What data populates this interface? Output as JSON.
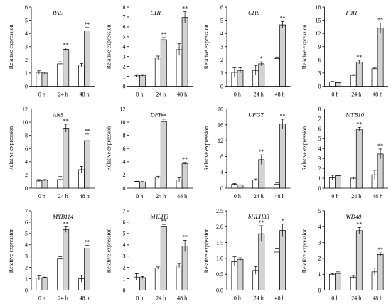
{
  "chart_data": [
    {
      "type": "bar",
      "title": "PAL",
      "ylabel": "Relative expression",
      "categories": [
        "0 h",
        "24 h",
        "48 h"
      ],
      "ylim": [
        0,
        6
      ],
      "yticks": [
        0,
        1,
        2,
        3,
        4,
        5,
        6
      ],
      "series": [
        {
          "color": "#ffffff",
          "values": [
            1.05,
            1.7,
            1.6
          ],
          "errors": [
            0.12,
            0.15,
            0.12
          ]
        },
        {
          "color": "#d3d3d3",
          "values": [
            1.0,
            2.8,
            4.2
          ],
          "errors": [
            0.07,
            0.1,
            0.25
          ]
        }
      ],
      "sig": [
        [
          "",
          "",
          ""
        ],
        [
          "",
          "**",
          "**"
        ]
      ]
    },
    {
      "type": "bar",
      "title": "CHI",
      "ylabel": "Relative expression",
      "categories": [
        "0 h",
        "24 h",
        "48 h"
      ],
      "ylim": [
        0,
        8
      ],
      "yticks": [
        0,
        1,
        2,
        3,
        4,
        5,
        6,
        7,
        8
      ],
      "series": [
        {
          "color": "#ffffff",
          "values": [
            1.05,
            2.85,
            3.7
          ],
          "errors": [
            0.12,
            0.2,
            0.6
          ]
        },
        {
          "color": "#d3d3d3",
          "values": [
            1.1,
            4.7,
            6.95
          ],
          "errors": [
            0.08,
            0.22,
            0.6
          ]
        }
      ],
      "sig": [
        [
          "",
          "",
          ""
        ],
        [
          "",
          "**",
          "**"
        ]
      ]
    },
    {
      "type": "bar",
      "title": "CHS",
      "ylabel": "Relative expression",
      "categories": [
        "0 h",
        "24 h",
        "48 h"
      ],
      "ylim": [
        0,
        6
      ],
      "yticks": [
        0,
        1,
        2,
        3,
        4,
        5,
        6
      ],
      "series": [
        {
          "color": "#ffffff",
          "values": [
            1.05,
            1.2,
            2.1
          ],
          "errors": [
            0.35,
            0.35,
            0.12
          ]
        },
        {
          "color": "#d3d3d3",
          "values": [
            1.2,
            1.7,
            4.65
          ],
          "errors": [
            0.2,
            0.15,
            0.25
          ]
        }
      ],
      "sig": [
        [
          "",
          "",
          ""
        ],
        [
          "",
          "*",
          "**"
        ]
      ]
    },
    {
      "type": "bar",
      "title": "F3H",
      "ylabel": "Relative expression",
      "categories": [
        "0 h",
        "24 h",
        "48 h"
      ],
      "ylim": [
        0,
        18
      ],
      "yticks": [
        0,
        3,
        6,
        9,
        12,
        15,
        18
      ],
      "series": [
        {
          "color": "#ffffff",
          "values": [
            1.0,
            2.5,
            4.0
          ],
          "errors": [
            0.1,
            0.15,
            0.25
          ]
        },
        {
          "color": "#d3d3d3",
          "values": [
            0.8,
            5.5,
            13.2
          ],
          "errors": [
            0.1,
            0.4,
            1.2
          ]
        }
      ],
      "sig": [
        [
          "",
          "",
          ""
        ],
        [
          "",
          "**",
          "**"
        ]
      ]
    },
    {
      "type": "bar",
      "title": "ANS",
      "ylabel": "Relative expression",
      "categories": [
        "0 h",
        "24 h",
        "48 h"
      ],
      "ylim": [
        0,
        12
      ],
      "yticks": [
        0,
        2,
        4,
        6,
        8,
        10,
        12
      ],
      "series": [
        {
          "color": "#ffffff",
          "values": [
            1.1,
            1.3,
            2.8
          ],
          "errors": [
            0.2,
            0.45,
            0.5
          ]
        },
        {
          "color": "#d3d3d3",
          "values": [
            1.2,
            9.1,
            7.2
          ],
          "errors": [
            0.1,
            0.6,
            1.0
          ]
        }
      ],
      "sig": [
        [
          "",
          "",
          ""
        ],
        [
          "",
          "**",
          "**"
        ]
      ]
    },
    {
      "type": "bar",
      "title": "DFR",
      "ylabel": "Relative expression",
      "categories": [
        "0 h",
        "24 h",
        "48 h"
      ],
      "ylim": [
        0,
        12
      ],
      "yticks": [
        0,
        2,
        4,
        6,
        8,
        10,
        12
      ],
      "series": [
        {
          "color": "#ffffff",
          "values": [
            1.0,
            1.65,
            1.25
          ],
          "errors": [
            0.05,
            0.15,
            0.3
          ]
        },
        {
          "color": "#d3d3d3",
          "values": [
            0.95,
            10.1,
            3.75
          ],
          "errors": [
            0.05,
            0.35,
            0.15
          ]
        }
      ],
      "sig": [
        [
          "",
          "",
          ""
        ],
        [
          "",
          "**",
          "**"
        ]
      ]
    },
    {
      "type": "bar",
      "title": "UFGT",
      "ylabel": "Relative expression",
      "categories": [
        "0 h",
        "24 h",
        "48 h"
      ],
      "ylim": [
        0,
        20
      ],
      "yticks": [
        0,
        4,
        8,
        12,
        16,
        20
      ],
      "series": [
        {
          "color": "#ffffff",
          "values": [
            1.0,
            2.1,
            1.0
          ],
          "errors": [
            0.15,
            0.2,
            0.3
          ]
        },
        {
          "color": "#d3d3d3",
          "values": [
            0.8,
            7.2,
            16.2
          ],
          "errors": [
            0.05,
            1.2,
            1.2
          ]
        }
      ],
      "sig": [
        [
          "",
          "",
          ""
        ],
        [
          "",
          "**",
          "**"
        ]
      ]
    },
    {
      "type": "bar",
      "title": "MYB10",
      "ylabel": "Relative expression",
      "categories": [
        "0 h",
        "24 h",
        "48 h"
      ],
      "ylim": [
        0,
        8
      ],
      "yticks": [
        0,
        1,
        2,
        3,
        4,
        5,
        6,
        7,
        8
      ],
      "series": [
        {
          "color": "#ffffff",
          "values": [
            1.05,
            1.0,
            1.35
          ],
          "errors": [
            0.25,
            0.1,
            0.45
          ]
        },
        {
          "color": "#d3d3d3",
          "values": [
            1.25,
            5.95,
            3.45
          ],
          "errors": [
            0.05,
            0.2,
            0.5
          ]
        }
      ],
      "sig": [
        [
          "",
          "",
          ""
        ],
        [
          "",
          "**",
          "**"
        ]
      ]
    },
    {
      "type": "bar",
      "title": "MYB114",
      "ylabel": "Relative expression",
      "categories": [
        "0 h",
        "24 h",
        "48 h"
      ],
      "ylim": [
        0,
        7
      ],
      "yticks": [
        0,
        1,
        2,
        3,
        4,
        5,
        6,
        7
      ],
      "series": [
        {
          "color": "#ffffff",
          "values": [
            1.05,
            2.75,
            1.0
          ],
          "errors": [
            0.2,
            0.2,
            0.3
          ]
        },
        {
          "color": "#d3d3d3",
          "values": [
            1.1,
            5.35,
            3.7
          ],
          "errors": [
            0.05,
            0.25,
            0.25
          ]
        }
      ],
      "sig": [
        [
          "",
          "",
          ""
        ],
        [
          "",
          "**",
          "**"
        ]
      ]
    },
    {
      "type": "bar",
      "title": "bHLH3",
      "ylabel": "Relative expression",
      "categories": [
        "0 h",
        "24 h",
        "48 h"
      ],
      "ylim": [
        0,
        7
      ],
      "yticks": [
        0,
        1,
        2,
        3,
        4,
        5,
        6,
        7
      ],
      "series": [
        {
          "color": "#ffffff",
          "values": [
            1.15,
            1.95,
            2.15
          ],
          "errors": [
            0.3,
            0.1,
            0.2
          ]
        },
        {
          "color": "#d3d3d3",
          "values": [
            1.1,
            5.6,
            3.9
          ],
          "errors": [
            0.1,
            0.2,
            0.5
          ]
        }
      ],
      "sig": [
        [
          "",
          "",
          ""
        ],
        [
          "",
          "**",
          "**"
        ]
      ]
    },
    {
      "type": "bar",
      "title": "bHLH33",
      "ylabel": "Relative expression",
      "categories": [
        "0 h",
        "24 h",
        "48 h"
      ],
      "ylim": [
        0,
        2.5
      ],
      "yticks": [
        0,
        0.5,
        1.0,
        1.5,
        2.0,
        2.5
      ],
      "series": [
        {
          "color": "#ffffff",
          "values": [
            0.9,
            0.62,
            1.2
          ],
          "errors": [
            0.15,
            0.12,
            0.1
          ]
        },
        {
          "color": "#d3d3d3",
          "values": [
            0.97,
            1.78,
            1.88
          ],
          "errors": [
            0.05,
            0.25,
            0.2
          ]
        }
      ],
      "sig": [
        [
          "",
          "",
          ""
        ],
        [
          "",
          "**",
          "*"
        ]
      ]
    },
    {
      "type": "bar",
      "title": "WD40",
      "ylabel": "Relative expression",
      "categories": [
        "0 h",
        "24 h",
        "48 h"
      ],
      "ylim": [
        0,
        5
      ],
      "yticks": [
        0,
        1,
        2,
        3,
        4,
        5
      ],
      "series": [
        {
          "color": "#ffffff",
          "values": [
            1.0,
            0.82,
            1.15
          ],
          "errors": [
            0.05,
            0.1,
            0.25
          ]
        },
        {
          "color": "#d3d3d3",
          "values": [
            1.05,
            3.75,
            2.25
          ],
          "errors": [
            0.1,
            0.2,
            0.1
          ]
        }
      ],
      "sig": [
        [
          "",
          "",
          ""
        ],
        [
          "",
          "**",
          "**"
        ]
      ]
    }
  ]
}
